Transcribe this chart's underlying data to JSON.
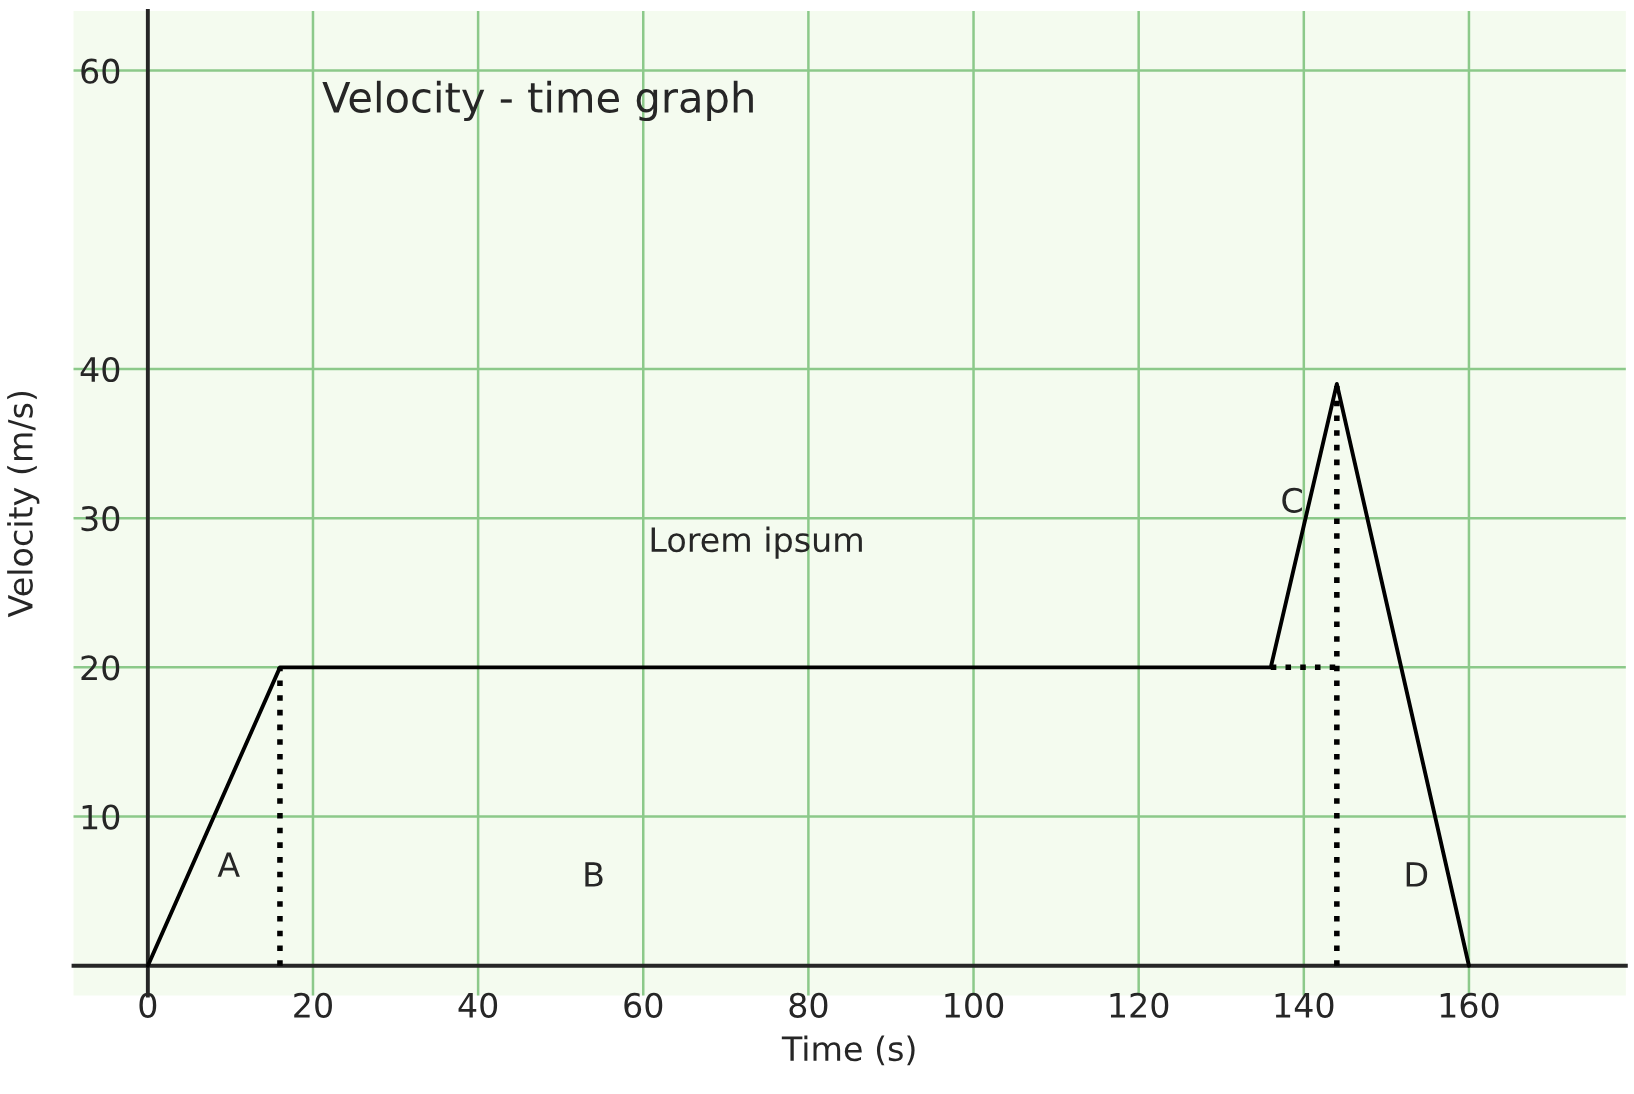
{
  "chart_data": {
    "type": "line",
    "title": "Velocity - time graph",
    "xlabel": "Time (s)",
    "ylabel": "Velocity (m/s)",
    "xlim": [
      -9,
      179
    ],
    "ylim": [
      -2,
      64
    ],
    "xticks": [
      0,
      20,
      40,
      60,
      80,
      100,
      120,
      140,
      160
    ],
    "yticks": [
      10,
      20,
      30,
      40,
      60
    ],
    "grid": true,
    "legend": false,
    "marker": "none",
    "series": [
      {
        "color": "#000000",
        "x": [
          0,
          16,
          136,
          144,
          160
        ],
        "values": [
          0,
          20,
          20,
          39,
          0
        ],
        "line_style": "solid"
      },
      {
        "color": "#000000",
        "x": [
          16,
          16
        ],
        "values": [
          0,
          20
        ],
        "line_style": "dotted"
      },
      {
        "color": "#000000",
        "x": [
          136,
          144
        ],
        "values": [
          20,
          20
        ],
        "line_style": "dotted"
      },
      {
        "color": "#000000",
        "x": [
          144,
          144
        ],
        "values": [
          0,
          39
        ],
        "line_style": "dotted"
      }
    ],
    "annotations": [
      "Lorem ipsum",
      "A",
      "B",
      "C",
      "D"
    ]
  }
}
